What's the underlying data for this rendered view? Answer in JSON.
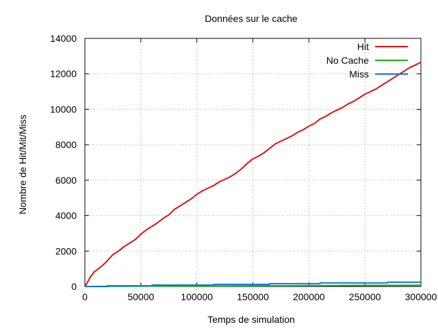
{
  "chart_data": {
    "type": "line",
    "title": "Données sur le cache",
    "xlabel": "Temps de simulation",
    "ylabel": "Nombre de Hit/Mit/Miss",
    "xlim": [
      0,
      300000
    ],
    "ylim": [
      0,
      14000
    ],
    "grid": true,
    "legend_position": "top-right",
    "x_ticks": [
      0,
      50000,
      100000,
      150000,
      200000,
      250000,
      300000
    ],
    "y_ticks": [
      0,
      2000,
      4000,
      6000,
      8000,
      10000,
      12000,
      14000
    ],
    "series": [
      {
        "name": "Hit",
        "color": "#e01010",
        "x": [
          0,
          2000,
          5000,
          8000,
          12000,
          16000,
          20000,
          25000,
          30000,
          35000,
          40000,
          45000,
          50000,
          55000,
          60000,
          65000,
          70000,
          75000,
          80000,
          85000,
          90000,
          95000,
          100000,
          105000,
          110000,
          115000,
          120000,
          125000,
          130000,
          135000,
          140000,
          145000,
          150000,
          155000,
          160000,
          165000,
          170000,
          175000,
          180000,
          185000,
          190000,
          195000,
          200000,
          205000,
          210000,
          215000,
          220000,
          225000,
          230000,
          235000,
          240000,
          245000,
          250000,
          255000,
          260000,
          265000,
          270000,
          275000,
          280000,
          285000,
          290000,
          295000,
          300000
        ],
        "values": [
          0,
          200,
          550,
          800,
          1000,
          1200,
          1450,
          1800,
          2000,
          2250,
          2450,
          2650,
          2950,
          3200,
          3400,
          3600,
          3850,
          4050,
          4350,
          4550,
          4750,
          4950,
          5200,
          5400,
          5550,
          5700,
          5900,
          6050,
          6200,
          6400,
          6650,
          6950,
          7200,
          7350,
          7550,
          7800,
          8050,
          8200,
          8350,
          8500,
          8700,
          8850,
          9050,
          9200,
          9450,
          9600,
          9800,
          9950,
          10100,
          10300,
          10450,
          10650,
          10850,
          11000,
          11150,
          11350,
          11550,
          11750,
          11950,
          12150,
          12350,
          12500,
          12650
        ]
      },
      {
        "name": "No Cache",
        "color": "#10b010",
        "x": [
          0,
          20000,
          60000,
          120000,
          170000,
          210000,
          250000,
          300000
        ],
        "values": [
          0,
          10,
          20,
          30,
          40,
          50,
          60,
          70
        ]
      },
      {
        "name": "Miss",
        "color": "#1070e0",
        "x": [
          0,
          20000,
          20000,
          60000,
          60000,
          115000,
          115000,
          165000,
          165000,
          210000,
          210000,
          270000,
          270000,
          300000
        ],
        "values": [
          0,
          0,
          40,
          40,
          80,
          80,
          120,
          120,
          160,
          160,
          200,
          200,
          240,
          240
        ]
      }
    ]
  }
}
